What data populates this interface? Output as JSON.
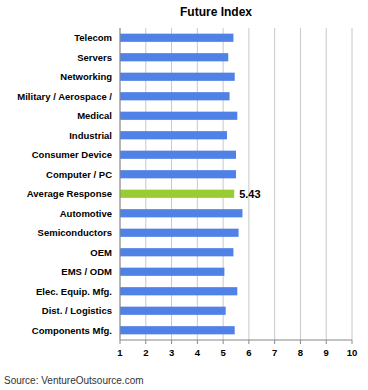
{
  "chart_data": {
    "type": "bar",
    "orientation": "horizontal",
    "title": "Future Index",
    "source": "Source: VentureOutsource.com",
    "categories": [
      "Telecom",
      "Servers",
      "Networking",
      "Military / Aerospace /",
      "Medical",
      "Industrial",
      "Consumer Device",
      "Computer / PC",
      "Average Response",
      "Automotive",
      "Semiconductors",
      "OEM",
      "EMS / ODM",
      "Elec. Equip. Mfg.",
      "Dist. / Logistics",
      "Components Mfg."
    ],
    "values": [
      5.4,
      5.2,
      5.45,
      5.25,
      5.55,
      5.15,
      5.5,
      5.5,
      5.43,
      5.75,
      5.6,
      5.4,
      5.05,
      5.55,
      5.1,
      5.45
    ],
    "value_labels": [
      null,
      null,
      null,
      null,
      null,
      null,
      null,
      null,
      "5.43",
      null,
      null,
      null,
      null,
      null,
      null,
      null
    ],
    "colors": [
      "#4f81e6",
      "#4f81e6",
      "#4f81e6",
      "#4f81e6",
      "#4f81e6",
      "#4f81e6",
      "#4f81e6",
      "#4f81e6",
      "#99cc33",
      "#4f81e6",
      "#4f81e6",
      "#4f81e6",
      "#4f81e6",
      "#4f81e6",
      "#4f81e6",
      "#4f81e6"
    ],
    "xlim": [
      1,
      10
    ],
    "xticks": [
      1,
      2,
      3,
      4,
      5,
      6,
      7,
      8,
      9,
      10
    ],
    "grid": true
  }
}
